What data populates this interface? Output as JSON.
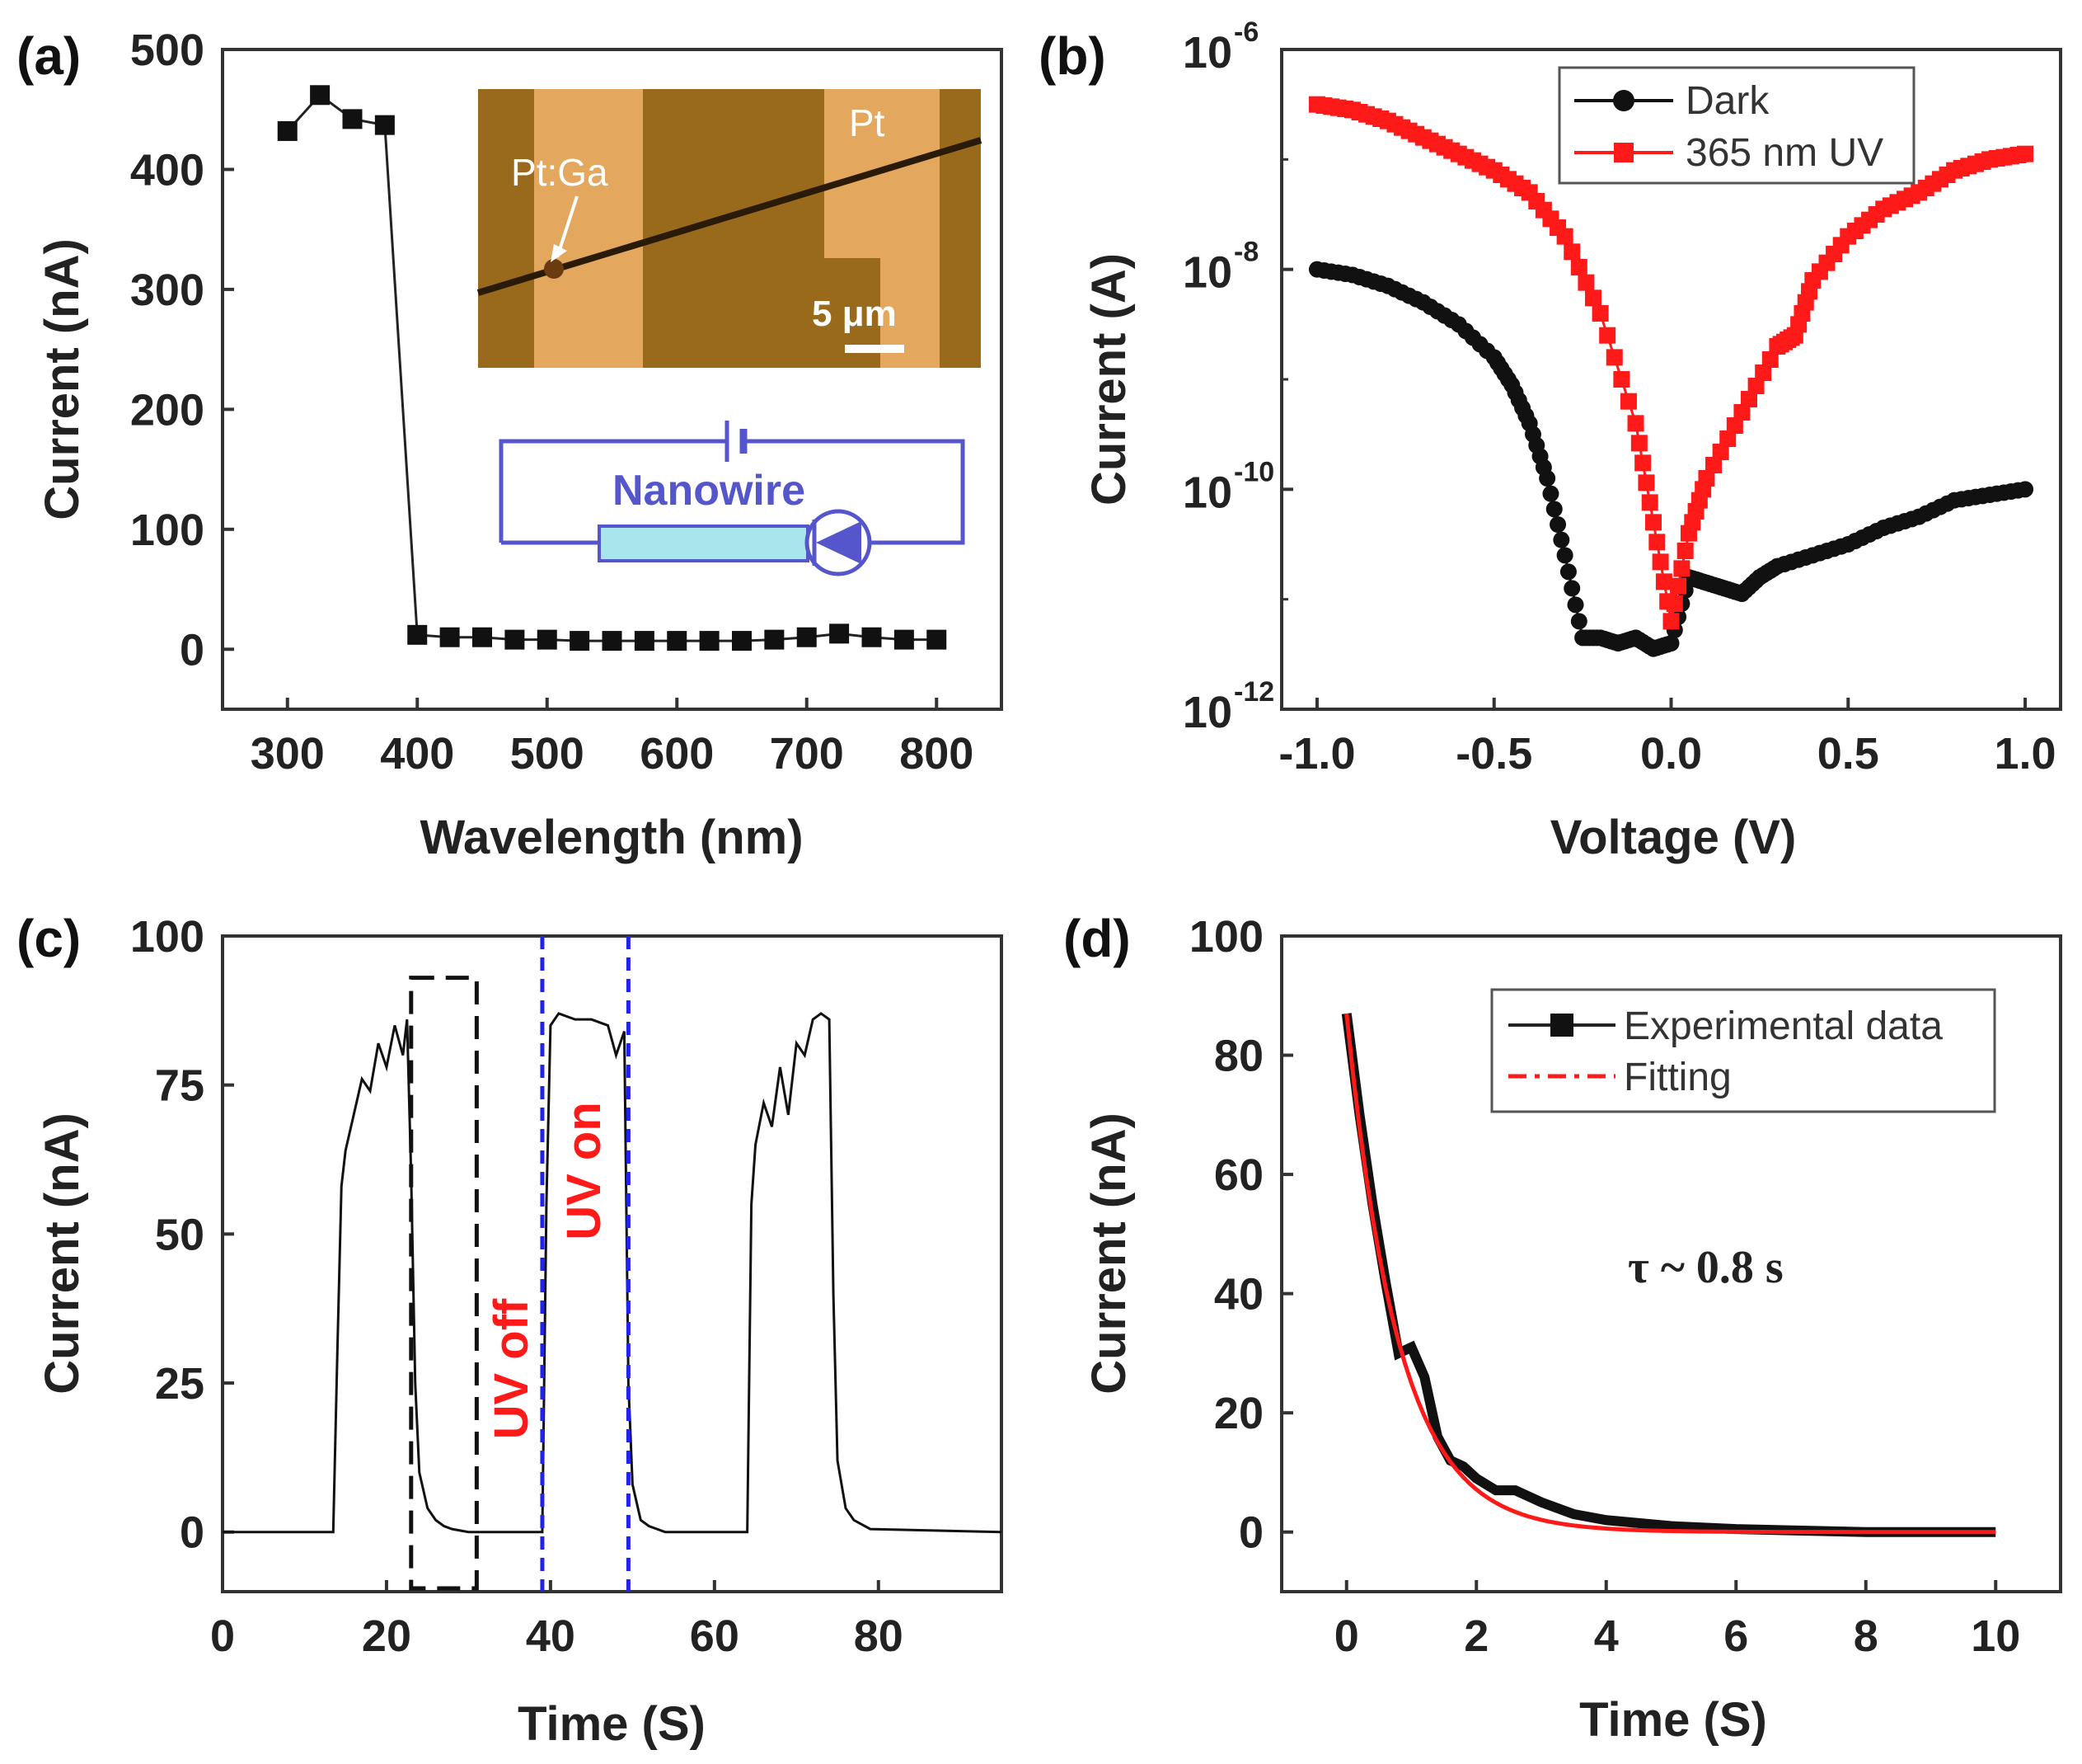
{
  "chart_data": [
    {
      "panel": "(a)",
      "type": "line",
      "xlabel": "Wavelength (nm)",
      "ylabel": "Current (nA)",
      "xlim": [
        250,
        850
      ],
      "ylim": [
        -50,
        500
      ],
      "xticks": [
        300,
        400,
        500,
        600,
        700,
        800
      ],
      "yticks": [
        0,
        100,
        200,
        300,
        400,
        500
      ],
      "x": [
        300,
        325,
        350,
        375,
        400,
        425,
        450,
        475,
        500,
        525,
        550,
        575,
        600,
        625,
        650,
        675,
        700,
        725,
        750,
        775,
        800
      ],
      "values": [
        432,
        462,
        442,
        437,
        12,
        10,
        10,
        8,
        8,
        7,
        7,
        7,
        7,
        7,
        7,
        8,
        10,
        13,
        10,
        8,
        8
      ],
      "inset_labels": {
        "electrode_left": "Pt:Ga",
        "electrode_right": "Pt",
        "scale_bar": "5 μm",
        "circuit": "Nanowire"
      }
    },
    {
      "panel": "(b)",
      "type": "line",
      "xlabel": "Voltage (V)",
      "ylabel": "Current (A)",
      "yscale": "log",
      "xlim": [
        -1.1,
        1.1
      ],
      "ylim_exp": [
        -12,
        -6
      ],
      "xticks": [
        "-1.0",
        "-0.5",
        "0.0",
        "0.5",
        "1.0"
      ],
      "yticks": [
        {
          "base": "10",
          "exp": "-6",
          "e": -6
        },
        {
          "base": "10",
          "exp": "-8",
          "e": -8
        },
        {
          "base": "10",
          "exp": "-10",
          "e": -10
        },
        {
          "base": "10",
          "exp": "-12",
          "e": -12
        }
      ],
      "legend": [
        "Dark",
        "365 nm UV"
      ],
      "series": [
        {
          "name": "Dark",
          "color": "#111111",
          "x": [
            -1.0,
            -0.9,
            -0.8,
            -0.7,
            -0.6,
            -0.5,
            -0.45,
            -0.4,
            -0.35,
            -0.3,
            -0.25,
            -0.2,
            -0.15,
            -0.1,
            -0.05,
            0.0,
            0.05,
            0.1,
            0.15,
            0.2,
            0.25,
            0.3,
            0.4,
            0.5,
            0.6,
            0.7,
            0.8,
            0.9,
            1.0
          ],
          "log10": [
            -8.0,
            -8.05,
            -8.15,
            -8.3,
            -8.5,
            -8.8,
            -9.05,
            -9.4,
            -9.9,
            -10.6,
            -11.35,
            -11.35,
            -11.4,
            -11.35,
            -11.45,
            -11.4,
            -10.8,
            -10.85,
            -10.9,
            -10.95,
            -10.8,
            -10.7,
            -10.6,
            -10.5,
            -10.35,
            -10.25,
            -10.1,
            -10.05,
            -10.0
          ]
        },
        {
          "name": "365 nm UV",
          "color": "#ff1a1a",
          "x": [
            -1.0,
            -0.9,
            -0.8,
            -0.7,
            -0.6,
            -0.5,
            -0.4,
            -0.3,
            -0.2,
            -0.1,
            -0.05,
            0.0,
            0.05,
            0.1,
            0.2,
            0.3,
            0.35,
            0.4,
            0.5,
            0.6,
            0.7,
            0.8,
            0.9,
            1.0
          ],
          "log10": [
            -6.5,
            -6.55,
            -6.65,
            -6.8,
            -6.95,
            -7.1,
            -7.3,
            -7.7,
            -8.4,
            -9.4,
            -10.3,
            -11.2,
            -10.4,
            -9.9,
            -9.3,
            -8.7,
            -8.6,
            -8.1,
            -7.7,
            -7.45,
            -7.3,
            -7.1,
            -7.0,
            -6.95
          ]
        }
      ]
    },
    {
      "panel": "(c)",
      "type": "line",
      "xlabel": "Time (S)",
      "ylabel": "Current (nA)",
      "xlim": [
        0,
        95
      ],
      "ylim": [
        -10,
        100
      ],
      "xticks": [
        0,
        20,
        40,
        60,
        80
      ],
      "yticks": [
        0,
        25,
        50,
        75,
        100
      ],
      "x": [
        0,
        13.5,
        14,
        14.5,
        15,
        16,
        17,
        18,
        19,
        20,
        21,
        22,
        22.5,
        23,
        23.5,
        24,
        25,
        26,
        27,
        28,
        30,
        38,
        39,
        39.5,
        40,
        41,
        43,
        45,
        47,
        48,
        49,
        49.5,
        50,
        51,
        52,
        54,
        64,
        64.5,
        65,
        66,
        67,
        68,
        69,
        70,
        71,
        72,
        73,
        74,
        74.5,
        75,
        76,
        77,
        79,
        95
      ],
      "values": [
        0,
        0,
        30,
        58,
        64,
        70,
        76,
        74,
        82,
        78,
        85,
        80,
        86,
        60,
        25,
        10,
        4,
        2,
        1,
        0.5,
        0,
        0,
        0,
        55,
        85,
        87,
        86,
        86,
        85,
        80,
        84,
        25,
        8,
        2,
        1,
        0,
        0,
        55,
        65,
        72,
        68,
        78,
        70,
        82,
        80,
        86,
        87,
        86,
        40,
        12,
        4,
        2,
        0.5,
        0
      ],
      "annotations": [
        "UV off",
        "UV on"
      ],
      "markers": {
        "dashed_box_x": [
          23,
          31
        ],
        "dashed_box_y": [
          -10,
          93
        ],
        "blue_lines_x": [
          39,
          49.5
        ]
      }
    },
    {
      "panel": "(d)",
      "type": "line",
      "xlabel": "Time (S)",
      "ylabel": "Current (nA)",
      "xlim": [
        -1,
        11
      ],
      "ylim": [
        -10,
        100
      ],
      "xticks": [
        0,
        2,
        4,
        6,
        8,
        10
      ],
      "yticks": [
        0,
        20,
        40,
        60,
        80,
        100
      ],
      "legend": [
        "Experimental data",
        "Fitting"
      ],
      "annotation": "τ ~ 0.8 s",
      "fit": {
        "A": 87,
        "tau": 0.8
      },
      "experimental": {
        "x": [
          0,
          0.2,
          0.4,
          0.6,
          0.8,
          1.0,
          1.2,
          1.4,
          1.6,
          1.8,
          2.0,
          2.3,
          2.6,
          3.0,
          3.5,
          4.0,
          5.0,
          6.0,
          8.0,
          10.0
        ],
        "values": [
          87,
          70,
          55,
          42,
          30,
          31,
          26,
          16,
          12,
          11,
          9,
          7,
          7,
          5,
          3,
          2,
          1,
          0.5,
          0,
          0
        ]
      }
    }
  ]
}
